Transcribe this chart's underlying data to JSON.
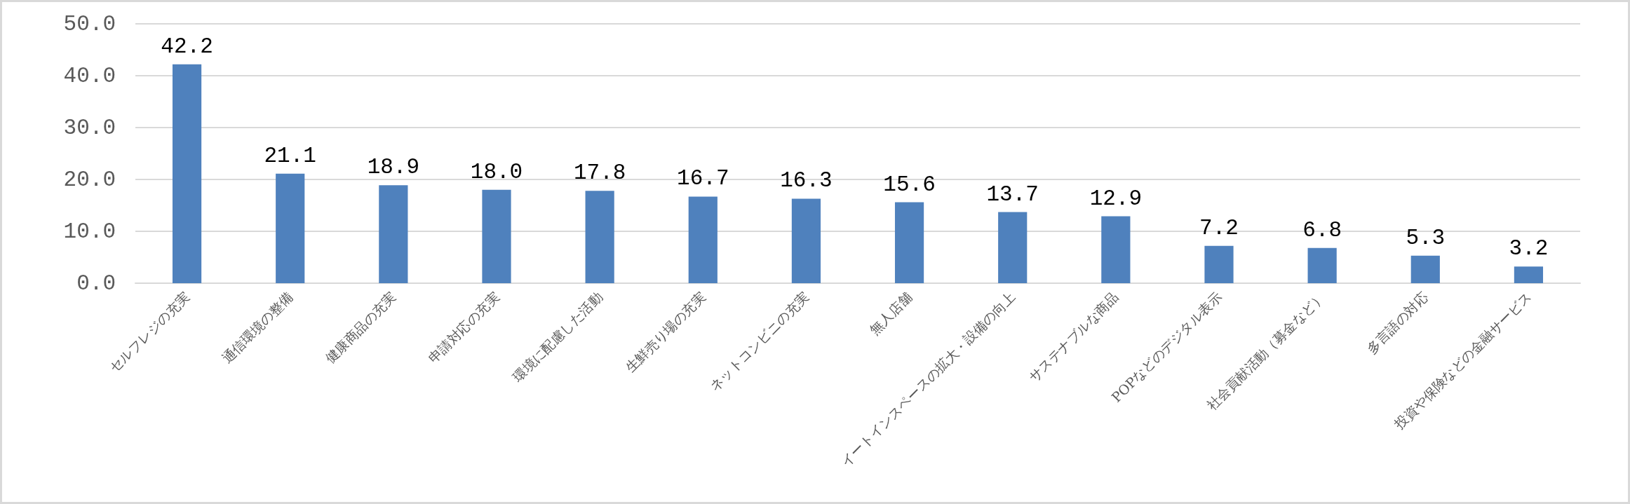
{
  "chart_data": {
    "type": "bar",
    "categories": [
      "セルフレジの充実",
      "通信環境の整備",
      "健康商品の充実",
      "申請対応の充実",
      "環境に配慮した活動",
      "生鮮売り場の充実",
      "ネットコンビニの充実",
      "無人店舗",
      "イートインスペースの拡大・設備の向上",
      "サステナブルな商品",
      "POPなどのデジタル表示",
      "社会貢献活動（募金など）",
      "多言語の対応",
      "投資や保険などの金融サービス"
    ],
    "values": [
      42.2,
      21.1,
      18.9,
      18.0,
      17.8,
      16.7,
      16.3,
      15.6,
      13.7,
      12.9,
      7.2,
      6.8,
      5.3,
      3.2
    ],
    "value_labels": [
      "42.2",
      "21.1",
      "18.9",
      "18.0",
      "17.8",
      "16.7",
      "16.3",
      "15.6",
      "13.7",
      "12.9",
      "7.2",
      "6.8",
      "5.3",
      "3.2"
    ],
    "color": "#4f81bd",
    "ylim": [
      0,
      50
    ],
    "yticks": [
      {
        "value": 0,
        "label": "0.0"
      },
      {
        "value": 10,
        "label": "10.0"
      },
      {
        "value": 20,
        "label": "20.0"
      },
      {
        "value": 30,
        "label": "30.0"
      },
      {
        "value": 40,
        "label": "40.0"
      },
      {
        "value": 50,
        "label": "50.0"
      }
    ],
    "grid": "y"
  }
}
